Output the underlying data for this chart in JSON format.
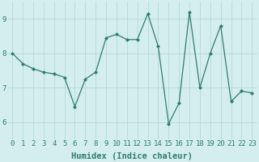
{
  "x": [
    0,
    1,
    2,
    3,
    4,
    5,
    6,
    7,
    8,
    9,
    10,
    11,
    12,
    13,
    14,
    15,
    16,
    17,
    18,
    19,
    20,
    21,
    22,
    23
  ],
  "y": [
    8.0,
    7.7,
    7.55,
    7.45,
    7.4,
    7.3,
    6.45,
    7.25,
    7.45,
    8.45,
    8.55,
    8.4,
    8.4,
    9.15,
    8.2,
    5.95,
    6.55,
    9.2,
    7.0,
    8.0,
    8.8,
    6.6,
    6.9,
    6.85
  ],
  "line_color": "#2e7d6e",
  "marker": "D",
  "marker_size": 2.0,
  "linewidth": 0.9,
  "xlabel": "Humidex (Indice chaleur)",
  "ylim": [
    5.5,
    9.5
  ],
  "xlim": [
    -0.5,
    23.5
  ],
  "yticks": [
    6,
    7,
    8,
    9
  ],
  "xticks": [
    0,
    1,
    2,
    3,
    4,
    5,
    6,
    7,
    8,
    9,
    10,
    11,
    12,
    13,
    14,
    15,
    16,
    17,
    18,
    19,
    20,
    21,
    22,
    23
  ],
  "xtick_labels": [
    "0",
    "1",
    "2",
    "3",
    "4",
    "5",
    "6",
    "7",
    "8",
    "9",
    "10",
    "11",
    "12",
    "13",
    "14",
    "15",
    "16",
    "17",
    "18",
    "19",
    "20",
    "21",
    "22",
    "23"
  ],
  "bg_color": "#d4eeee",
  "grid_color": "#b8d8d8",
  "text_color": "#2e7d6e",
  "xlabel_fontsize": 7.5,
  "tick_fontsize": 6.5,
  "xlabel_bold": true
}
